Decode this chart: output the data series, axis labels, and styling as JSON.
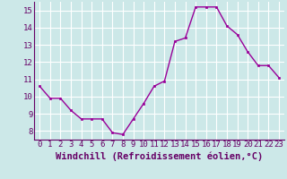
{
  "x": [
    0,
    1,
    2,
    3,
    4,
    5,
    6,
    7,
    8,
    9,
    10,
    11,
    12,
    13,
    14,
    15,
    16,
    17,
    18,
    19,
    20,
    21,
    22,
    23
  ],
  "y": [
    10.6,
    9.9,
    9.9,
    9.2,
    8.7,
    8.7,
    8.7,
    7.9,
    7.8,
    8.7,
    9.6,
    10.6,
    10.9,
    13.2,
    13.4,
    15.2,
    15.2,
    15.2,
    14.1,
    13.6,
    12.6,
    11.8,
    11.8,
    11.1
  ],
  "line_color": "#990099",
  "marker": "s",
  "marker_size": 2,
  "xlabel": "Windchill (Refroidissement éolien,°C)",
  "xlim": [
    -0.5,
    23.5
  ],
  "ylim": [
    7.5,
    15.5
  ],
  "yticks": [
    8,
    9,
    10,
    11,
    12,
    13,
    14,
    15
  ],
  "xtick_labels": [
    "0",
    "1",
    "2",
    "3",
    "4",
    "5",
    "6",
    "7",
    "8",
    "9",
    "10",
    "11",
    "12",
    "13",
    "14",
    "15",
    "16",
    "17",
    "18",
    "19",
    "20",
    "21",
    "22",
    "23"
  ],
  "background_color": "#cce8e8",
  "grid_color": "#ffffff",
  "tick_label_fontsize": 6.5,
  "xlabel_fontsize": 7.5,
  "spine_color": "#660066",
  "label_color": "#660066"
}
